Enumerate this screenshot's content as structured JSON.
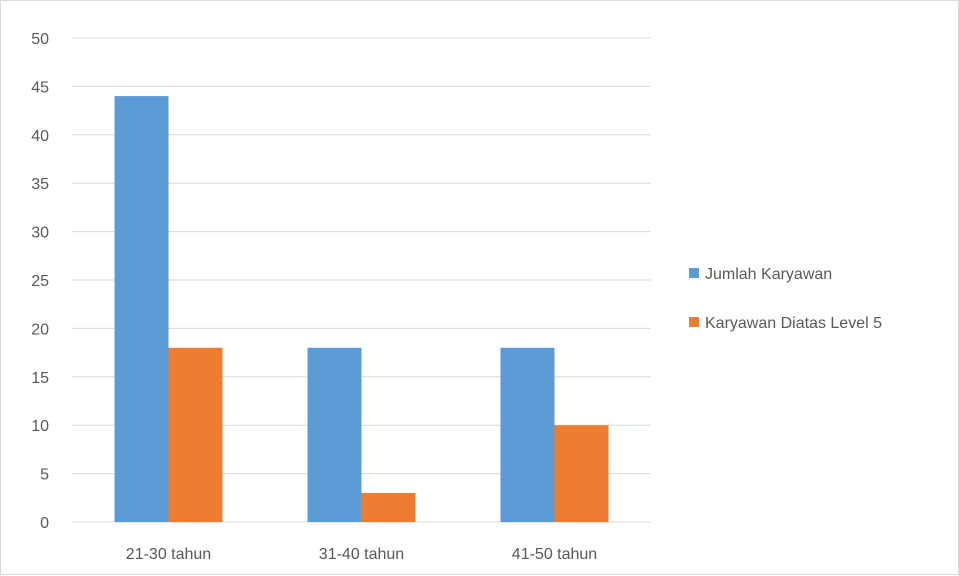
{
  "chart_data": {
    "type": "bar",
    "title": "",
    "xlabel": "",
    "ylabel": "",
    "categories": [
      "21-30 tahun",
      "31-40 tahun",
      "41-50 tahun"
    ],
    "series": [
      {
        "name": "Jumlah Karyawan",
        "values": [
          44,
          18,
          18
        ],
        "color": "#5b9bd5"
      },
      {
        "name": "Karyawan Diatas Level 5",
        "values": [
          18,
          3,
          10
        ],
        "color": "#ed7d31"
      }
    ],
    "ylim": [
      0,
      50
    ],
    "yticks": [
      0,
      5,
      10,
      15,
      20,
      25,
      30,
      35,
      40,
      45,
      50
    ],
    "grid": true,
    "legend": "right",
    "gridline_color": "#d9d9d9"
  }
}
